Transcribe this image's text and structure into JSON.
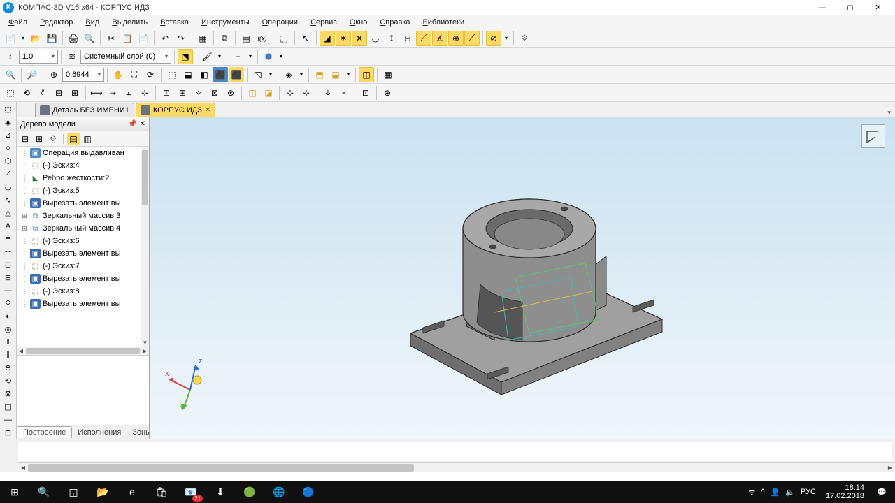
{
  "window": {
    "title": "КОМПАС-3D V16  x64 - КОРПУС ИДЗ",
    "icon_letter": "К"
  },
  "menu": [
    "Файл",
    "Редактор",
    "Вид",
    "Выделить",
    "Вставка",
    "Инструменты",
    "Операции",
    "Сервис",
    "Окно",
    "Справка",
    "Библиотеки"
  ],
  "toolbar_values": {
    "line_width": "1.0",
    "layer": "Системный слой (0)",
    "zoom": "0.6944"
  },
  "tabs": [
    {
      "label": "Деталь БЕЗ ИМЕНИ1",
      "active": false
    },
    {
      "label": "КОРПУС ИДЗ",
      "active": true
    }
  ],
  "tree": {
    "title": "Дерево модели",
    "items": [
      {
        "icon": "extrude",
        "label": "Операция выдавливан",
        "exp": ""
      },
      {
        "icon": "sketch",
        "label": "(-) Эскиз:4",
        "exp": ""
      },
      {
        "icon": "rib",
        "label": "Ребро жесткости:2",
        "exp": ""
      },
      {
        "icon": "sketch",
        "label": "(-) Эскиз:5",
        "exp": ""
      },
      {
        "icon": "cut",
        "label": "Вырезать элемент вы",
        "exp": ""
      },
      {
        "icon": "mirror",
        "label": "Зеркальный массив:3",
        "exp": "+"
      },
      {
        "icon": "mirror",
        "label": "Зеркальный массив:4",
        "exp": "+"
      },
      {
        "icon": "sketch",
        "label": "(-) Эскиз:6",
        "exp": ""
      },
      {
        "icon": "cut",
        "label": "Вырезать элемент вы",
        "exp": ""
      },
      {
        "icon": "sketch",
        "label": "(-) Эскиз:7",
        "exp": ""
      },
      {
        "icon": "cut",
        "label": "Вырезать элемент вы",
        "exp": ""
      },
      {
        "icon": "sketch",
        "label": "(-) Эскиз:8",
        "exp": ""
      },
      {
        "icon": "cut",
        "label": "Вырезать элемент вы",
        "exp": ""
      }
    ],
    "bottom_tabs": [
      "Построение",
      "Исполнения",
      "Зоны"
    ]
  },
  "triad": {
    "x": "x",
    "y": "y",
    "z": "z",
    "x_color": "#d93a3a",
    "y_color": "#5bb23e",
    "z_color": "#2a6ed6"
  },
  "model": {
    "base_color": "#9a9a9a",
    "base_shadow": "#707070",
    "base_light": "#c4c4c4",
    "cyl_color": "#8e8e8e",
    "cyl_shadow": "#606060",
    "cyl_light": "#bcbcbc",
    "outline": "#2a2a2a",
    "plane1": "#58c770",
    "plane2": "#4ab6b0",
    "plane3": "#d6bc4c"
  },
  "taskbar": {
    "apps": [
      "⊞",
      "🔍",
      "◱",
      "📂",
      "e",
      "🛍",
      "📧",
      "⬇",
      "🟢",
      "🌐",
      "🔵"
    ],
    "tray": [
      "ᯤ",
      "^",
      "👤",
      "🔈",
      "РУС"
    ],
    "badge": "21",
    "clock_time": "18:14",
    "clock_date": "17.02.2018"
  },
  "colors": {
    "bg": "#f0f0f0",
    "toolbar_bg": "#f5f5f5",
    "active_tab": "#ffd966",
    "viewport_top": "#cbe2f1",
    "viewport_bottom": "#f0f6fa"
  }
}
